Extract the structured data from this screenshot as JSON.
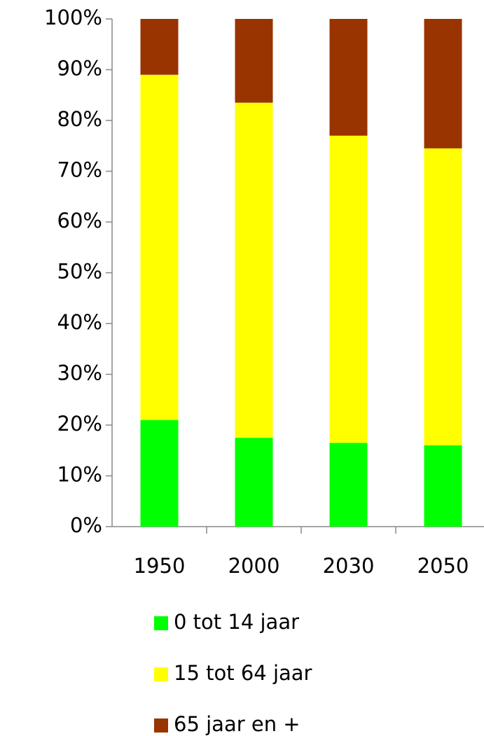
{
  "chart_data": {
    "type": "stacked_bar",
    "categories": [
      "1950",
      "2000",
      "2030",
      "2050"
    ],
    "series": [
      {
        "name": "0 tot 14 jaar",
        "color": "#00ff00",
        "values": [
          21,
          17.5,
          16.5,
          16
        ]
      },
      {
        "name": "15 tot 64 jaar",
        "color": "#ffff00",
        "values": [
          68,
          66,
          60.5,
          58.5
        ]
      },
      {
        "name": "65 jaar en +",
        "color": "#993300",
        "values": [
          11,
          16.5,
          23,
          25.5
        ]
      }
    ],
    "ylim": [
      0,
      100
    ],
    "yticks": [
      {
        "value": 0,
        "label": "0%"
      },
      {
        "value": 10,
        "label": "10%"
      },
      {
        "value": 20,
        "label": "20%"
      },
      {
        "value": 30,
        "label": "30%"
      },
      {
        "value": 40,
        "label": "40%"
      },
      {
        "value": 50,
        "label": "50%"
      },
      {
        "value": 60,
        "label": "60%"
      },
      {
        "value": 70,
        "label": "70%"
      },
      {
        "value": 80,
        "label": "80%"
      },
      {
        "value": 90,
        "label": "90%"
      },
      {
        "value": 100,
        "label": "100%"
      }
    ],
    "legend": "bottom"
  }
}
